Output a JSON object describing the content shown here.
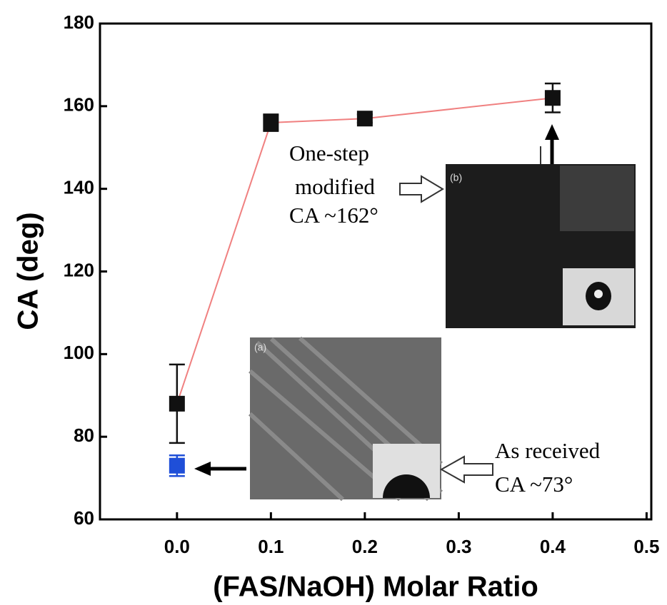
{
  "chart_data": {
    "type": "line",
    "xlabel": "(FAS/NaOH) Molar Ratio",
    "ylabel": "CA (deg)",
    "xlim": [
      -0.082,
      0.505
    ],
    "ylim": [
      60,
      180
    ],
    "xticks": [
      {
        "value": 0,
        "label": "0.0"
      },
      0.1,
      0.2,
      0.3,
      0.4,
      0.5
    ],
    "yticks": [
      60,
      80,
      100,
      120,
      140,
      160,
      180
    ],
    "series": [
      {
        "color": "#111111",
        "line_color": "#f08080",
        "x": [
          0,
          0.1,
          0.2,
          0.4
        ],
        "values": [
          88,
          156,
          157,
          162
        ],
        "errors": [
          9.5,
          2,
          1,
          3.5
        ]
      },
      {
        "color": "#1f4fd8",
        "x": [
          0
        ],
        "values": [
          73
        ],
        "errors": [
          2.5
        ]
      }
    ],
    "annotations": [
      "One-step",
      "modified",
      "CA ~162°",
      "As received",
      "CA ~73°",
      "(a)",
      "(b)"
    ]
  }
}
